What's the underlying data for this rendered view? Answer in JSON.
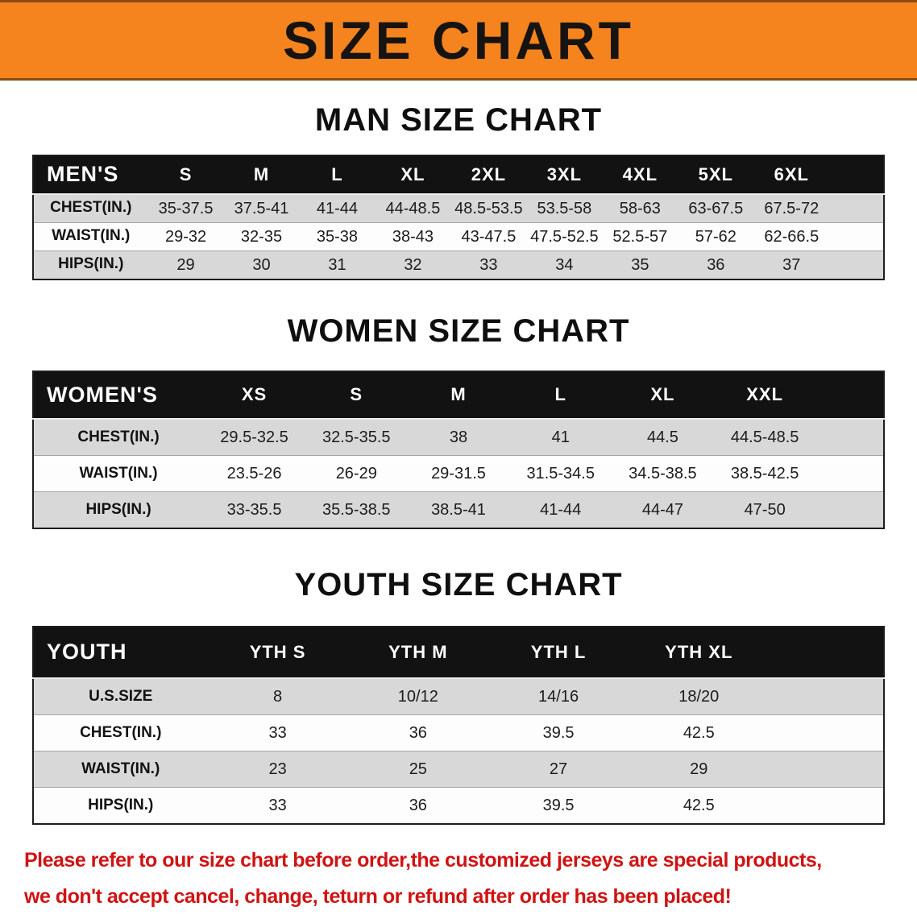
{
  "banner": {
    "title": "SIZE CHART"
  },
  "colors": {
    "banner_bg": "#f5831e",
    "table_header_bg": "#121212",
    "row_stripe": "#d8d8d8",
    "disclaimer_text": "#d01313"
  },
  "sections": [
    {
      "id": "men",
      "heading": "MAN SIZE CHART",
      "corner_label": "MEN'S",
      "columns": [
        "S",
        "M",
        "L",
        "XL",
        "2XL",
        "3XL",
        "4XL",
        "5XL",
        "6XL"
      ],
      "rows": [
        {
          "label": "CHEST(IN.)",
          "values": [
            "35-37.5",
            "37.5-41",
            "41-44",
            "44-48.5",
            "48.5-53.5",
            "53.5-58",
            "58-63",
            "63-67.5",
            "67.5-72"
          ]
        },
        {
          "label": "WAIST(IN.)",
          "values": [
            "29-32",
            "32-35",
            "35-38",
            "38-43",
            "43-47.5",
            "47.5-52.5",
            "52.5-57",
            "57-62",
            "62-66.5"
          ]
        },
        {
          "label": "HIPS(IN.)",
          "values": [
            "29",
            "30",
            "31",
            "32",
            "33",
            "34",
            "35",
            "36",
            "37"
          ]
        }
      ]
    },
    {
      "id": "women",
      "heading": "WOMEN SIZE CHART",
      "corner_label": "WOMEN'S",
      "columns": [
        "XS",
        "S",
        "M",
        "L",
        "XL",
        "XXL"
      ],
      "rows": [
        {
          "label": "CHEST(IN.)",
          "values": [
            "29.5-32.5",
            "32.5-35.5",
            "38",
            "41",
            "44.5",
            "44.5-48.5"
          ]
        },
        {
          "label": "WAIST(IN.)",
          "values": [
            "23.5-26",
            "26-29",
            "29-31.5",
            "31.5-34.5",
            "34.5-38.5",
            "38.5-42.5"
          ]
        },
        {
          "label": "HIPS(IN.)",
          "values": [
            "33-35.5",
            "35.5-38.5",
            "38.5-41",
            "41-44",
            "44-47",
            "47-50"
          ]
        }
      ]
    },
    {
      "id": "youth",
      "heading": "YOUTH SIZE CHART",
      "corner_label": "YOUTH",
      "columns": [
        "YTH S",
        "YTH M",
        "YTH L",
        "YTH XL"
      ],
      "rows": [
        {
          "label": "U.S.SIZE",
          "values": [
            "8",
            "10/12",
            "14/16",
            "18/20"
          ]
        },
        {
          "label": "CHEST(IN.)",
          "values": [
            "33",
            "36",
            "39.5",
            "42.5"
          ]
        },
        {
          "label": "WAIST(IN.)",
          "values": [
            "23",
            "25",
            "27",
            "29"
          ]
        },
        {
          "label": "HIPS(IN.)",
          "values": [
            "33",
            "36",
            "39.5",
            "42.5"
          ]
        }
      ]
    }
  ],
  "footer": {
    "lines": [
      "Please refer to our size chart before order,the customized jerseys are special products,",
      "we don't accept cancel, change, teturn or refund after order has been placed!"
    ]
  }
}
